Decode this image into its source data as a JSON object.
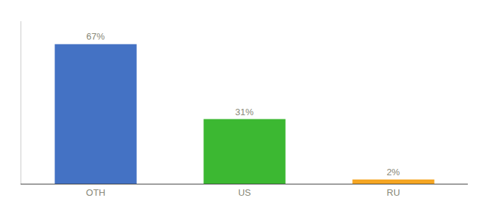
{
  "chart_data": {
    "type": "bar",
    "categories": [
      "OTH",
      "US",
      "RU"
    ],
    "values": [
      67,
      31,
      2
    ],
    "value_labels": [
      "67%",
      "31%",
      "2%"
    ],
    "data_labels": true,
    "colors": [
      "#4472c4",
      "#3cb832",
      "#f5a623"
    ],
    "ylim": [
      0,
      78
    ],
    "grid": false,
    "tick_labels": "x"
  }
}
